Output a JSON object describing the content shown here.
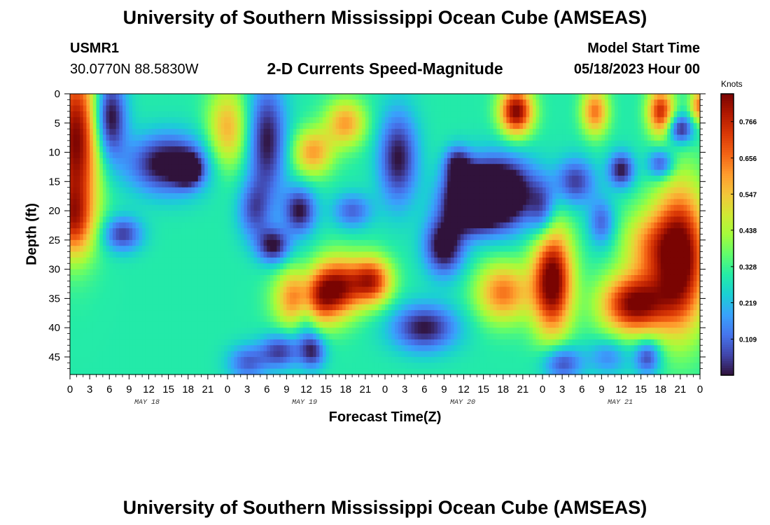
{
  "header": {
    "title": "University of Southern Mississippi Ocean Cube (AMSEAS)",
    "station": "USMR1",
    "coords": "30.0770N  88.5830W",
    "subtitle": "2-D Currents Speed-Magnitude",
    "start_label": "Model Start Time",
    "start_value": "05/18/2023 Hour 00"
  },
  "footer": {
    "title": "University of Southern Mississippi Ocean Cube (AMSEAS)"
  },
  "chart_data": {
    "type": "heatmap",
    "xlabel": "Forecast Time(Z)",
    "ylabel": "Depth (ft)",
    "colorbar_label": "Knots",
    "x_range_hours": [
      0,
      96
    ],
    "y_range_ft": [
      0,
      48
    ],
    "x_tick_labels": [
      "0",
      "3",
      "6",
      "9",
      "12",
      "15",
      "18",
      "21",
      "0",
      "3",
      "6",
      "9",
      "12",
      "15",
      "18",
      "21",
      "0",
      "3",
      "6",
      "9",
      "12",
      "15",
      "18",
      "21",
      "0",
      "3",
      "6",
      "9",
      "12",
      "15",
      "18",
      "21",
      "0"
    ],
    "y_tick_labels": [
      "0",
      "5",
      "10",
      "15",
      "20",
      "25",
      "30",
      "35",
      "40",
      "45"
    ],
    "y_tick_values": [
      0,
      5,
      10,
      15,
      20,
      25,
      30,
      35,
      40,
      45
    ],
    "date_labels": [
      "MAY 18",
      "MAY 19",
      "MAY 20",
      "MAY 21"
    ],
    "colorbar_ticks": [
      "0.766",
      "0.656",
      "0.547",
      "0.438",
      "0.328",
      "0.219",
      "0.109"
    ],
    "colorbar_values": [
      0.766,
      0.656,
      0.547,
      0.438,
      0.328,
      0.219,
      0.109
    ],
    "colorbar_range": [
      0.0,
      0.85
    ],
    "colormap": [
      "#30123b",
      "#4145ab",
      "#4675ed",
      "#39a2fc",
      "#1bcfd4",
      "#24eca6",
      "#61fc6c",
      "#a4fc3b",
      "#d1e834",
      "#f3c63a",
      "#fe9b2d",
      "#f36315",
      "#d93806",
      "#b11901",
      "#7a0402"
    ],
    "features": [
      {
        "t": 1,
        "d": 8,
        "w": 3.5,
        "h": 14,
        "a": 0.55
      },
      {
        "t": 0.5,
        "d": 22,
        "w": 3,
        "h": 6,
        "a": 0.3
      },
      {
        "t": 6,
        "d": 4,
        "w": 2.5,
        "h": 7,
        "a": -0.35
      },
      {
        "t": 15,
        "d": 12,
        "w": 6,
        "h": 5,
        "a": -0.35
      },
      {
        "t": 18,
        "d": 13,
        "w": 2,
        "h": 2.5,
        "a": -0.3
      },
      {
        "t": 8,
        "d": 24,
        "w": 3,
        "h": 3,
        "a": -0.25
      },
      {
        "t": 24,
        "d": 6,
        "w": 3,
        "h": 7,
        "a": 0.28
      },
      {
        "t": 28,
        "d": 20,
        "w": 2.5,
        "h": 5,
        "a": -0.2
      },
      {
        "t": 27,
        "d": 46,
        "w": 3,
        "h": 3,
        "a": -0.2
      },
      {
        "t": 30,
        "d": 8,
        "w": 3,
        "h": 10,
        "a": -0.3
      },
      {
        "t": 31,
        "d": 26,
        "w": 2.5,
        "h": 3,
        "a": -0.3
      },
      {
        "t": 35,
        "d": 20,
        "w": 2.5,
        "h": 4,
        "a": -0.3
      },
      {
        "t": 37,
        "d": 10,
        "w": 3,
        "h": 4,
        "a": 0.3
      },
      {
        "t": 42,
        "d": 5,
        "w": 3,
        "h": 4,
        "a": 0.3
      },
      {
        "t": 43,
        "d": 20,
        "w": 3,
        "h": 3,
        "a": -0.2
      },
      {
        "t": 36,
        "d": 35,
        "w": 4,
        "h": 5,
        "a": 0.55
      },
      {
        "t": 41,
        "d": 33,
        "w": 3.5,
        "h": 5,
        "a": 0.45
      },
      {
        "t": 46,
        "d": 32,
        "w": 3,
        "h": 4,
        "a": 0.45
      },
      {
        "t": 32,
        "d": 44,
        "w": 3,
        "h": 3,
        "a": -0.25
      },
      {
        "t": 37,
        "d": 44,
        "w": 2,
        "h": 3,
        "a": -0.25
      },
      {
        "t": 36,
        "d": 36,
        "w": 2,
        "h": 6,
        "a": -0.3
      },
      {
        "t": 50,
        "d": 11,
        "w": 3,
        "h": 8,
        "a": -0.3
      },
      {
        "t": 57,
        "d": 26,
        "w": 3,
        "h": 5,
        "a": -0.35
      },
      {
        "t": 59,
        "d": 12,
        "w": 2,
        "h": 3,
        "a": -0.25
      },
      {
        "t": 54,
        "d": 40,
        "w": 5,
        "h": 4,
        "a": -0.3
      },
      {
        "t": 61,
        "d": 18,
        "w": 4,
        "h": 5,
        "a": -0.55
      },
      {
        "t": 66,
        "d": 17,
        "w": 5,
        "h": 6,
        "a": -0.45
      },
      {
        "t": 66,
        "d": 34,
        "w": 4,
        "h": 5,
        "a": 0.35
      },
      {
        "t": 72,
        "d": 20,
        "w": 2,
        "h": 5,
        "a": -0.2
      },
      {
        "t": 73.5,
        "d": 32,
        "w": 3,
        "h": 9,
        "a": 0.6
      },
      {
        "t": 68,
        "d": 3,
        "w": 2.5,
        "h": 4,
        "a": 0.55
      },
      {
        "t": 80,
        "d": 3,
        "w": 2,
        "h": 4,
        "a": 0.35
      },
      {
        "t": 77,
        "d": 15,
        "w": 3,
        "h": 4,
        "a": -0.25
      },
      {
        "t": 75,
        "d": 46,
        "w": 3,
        "h": 3,
        "a": -0.25
      },
      {
        "t": 81,
        "d": 22,
        "w": 2,
        "h": 4,
        "a": -0.2
      },
      {
        "t": 84,
        "d": 13,
        "w": 2,
        "h": 3,
        "a": -0.3
      },
      {
        "t": 88,
        "d": 26,
        "w": 4,
        "h": 6,
        "a": 0.25
      },
      {
        "t": 86,
        "d": 36,
        "w": 5,
        "h": 5,
        "a": 0.55
      },
      {
        "t": 93,
        "d": 28,
        "w": 4,
        "h": 12,
        "a": 0.6
      },
      {
        "t": 90,
        "d": 12,
        "w": 2,
        "h": 2.5,
        "a": -0.25
      },
      {
        "t": 93,
        "d": 6,
        "w": 2,
        "h": 2.5,
        "a": -0.3
      },
      {
        "t": 90,
        "d": 3,
        "w": 2,
        "h": 4,
        "a": 0.45
      },
      {
        "t": 96,
        "d": 2,
        "w": 1.5,
        "h": 3,
        "a": 0.35
      },
      {
        "t": 88,
        "d": 45,
        "w": 2,
        "h": 3,
        "a": -0.25
      },
      {
        "t": 82,
        "d": 45,
        "w": 3,
        "h": 3,
        "a": -0.15
      }
    ]
  }
}
